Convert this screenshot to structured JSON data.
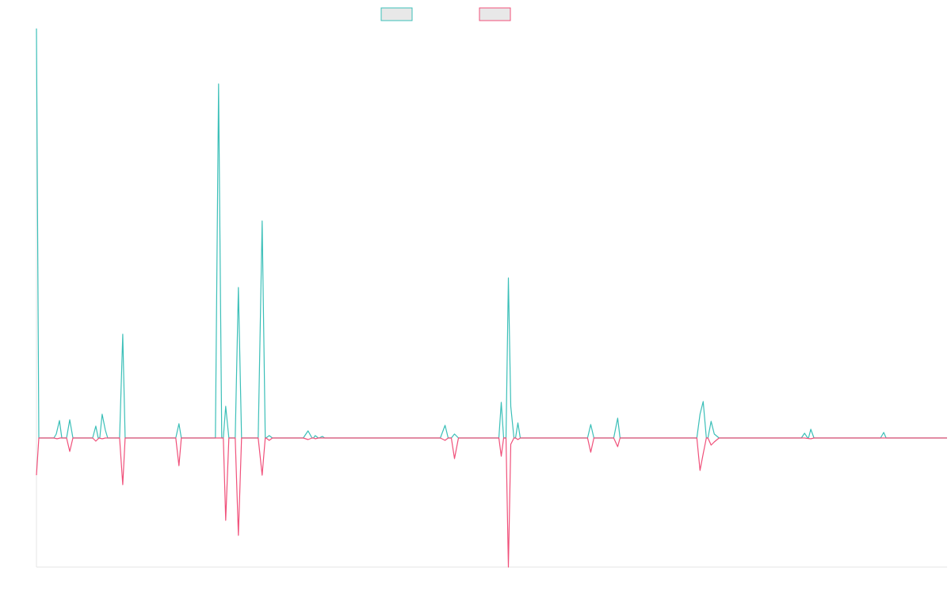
{
  "chart_data": {
    "type": "line",
    "title": "",
    "xlabel": "",
    "ylabel": "",
    "grid": false,
    "legend": "top-center",
    "xlim": [
      0,
      1150
    ],
    "ylim": [
      -163,
      517
    ],
    "series": [
      {
        "color": "#3bbfb8",
        "fill": "#e8e8e8",
        "points": [
          [
            0,
            517
          ],
          [
            3,
            0
          ],
          [
            22,
            0
          ],
          [
            25,
            5
          ],
          [
            29,
            22
          ],
          [
            32,
            0
          ],
          [
            38,
            0
          ],
          [
            42,
            23
          ],
          [
            46,
            0
          ],
          [
            71,
            0
          ],
          [
            75,
            15
          ],
          [
            78,
            0
          ],
          [
            80,
            0
          ],
          [
            83,
            30
          ],
          [
            87,
            10
          ],
          [
            90,
            0
          ],
          [
            105,
            0
          ],
          [
            109,
            131
          ],
          [
            112,
            0
          ],
          [
            176,
            0
          ],
          [
            180,
            18
          ],
          [
            183,
            0
          ],
          [
            226,
            0
          ],
          [
            230,
            447
          ],
          [
            234,
            0
          ],
          [
            236,
            0
          ],
          [
            239,
            40
          ],
          [
            243,
            0
          ],
          [
            251,
            0
          ],
          [
            255,
            190
          ],
          [
            259,
            0
          ],
          [
            280,
            0
          ],
          [
            285,
            274
          ],
          [
            289,
            0
          ],
          [
            290,
            0
          ],
          [
            294,
            3
          ],
          [
            298,
            0
          ],
          [
            337,
            0
          ],
          [
            343,
            9
          ],
          [
            348,
            0
          ],
          [
            350,
            0
          ],
          [
            352,
            3
          ],
          [
            356,
            0
          ],
          [
            357,
            0
          ],
          [
            361,
            2
          ],
          [
            364,
            0
          ],
          [
            510,
            0
          ],
          [
            516,
            16
          ],
          [
            520,
            0
          ],
          [
            524,
            0
          ],
          [
            528,
            5
          ],
          [
            533,
            0
          ],
          [
            584,
            0
          ],
          [
            587,
            45
          ],
          [
            590,
            0
          ],
          [
            593,
            0
          ],
          [
            596,
            202
          ],
          [
            599,
            40
          ],
          [
            603,
            0
          ],
          [
            605,
            0
          ],
          [
            608,
            19
          ],
          [
            611,
            0
          ],
          [
            696,
            0
          ],
          [
            700,
            17
          ],
          [
            704,
            0
          ],
          [
            729,
            0
          ],
          [
            734,
            25
          ],
          [
            737,
            0
          ],
          [
            834,
            0
          ],
          [
            838,
            30
          ],
          [
            842,
            46
          ],
          [
            846,
            0
          ],
          [
            848,
            0
          ],
          [
            852,
            21
          ],
          [
            856,
            5
          ],
          [
            862,
            0
          ],
          [
            966,
            0
          ],
          [
            970,
            6
          ],
          [
            974,
            0
          ],
          [
            975,
            0
          ],
          [
            978,
            11
          ],
          [
            982,
            0
          ],
          [
            1066,
            0
          ],
          [
            1070,
            7
          ],
          [
            1073,
            0
          ],
          [
            1150,
            0
          ]
        ]
      },
      {
        "color": "#f0507a",
        "fill": "#e8e8e8",
        "points": [
          [
            0,
            -47
          ],
          [
            3,
            0
          ],
          [
            22,
            0
          ],
          [
            26,
            -1
          ],
          [
            30,
            0
          ],
          [
            38,
            0
          ],
          [
            42,
            -17
          ],
          [
            46,
            0
          ],
          [
            71,
            0
          ],
          [
            75,
            -4
          ],
          [
            79,
            0
          ],
          [
            83,
            -1
          ],
          [
            87,
            0
          ],
          [
            90,
            0
          ],
          [
            105,
            0
          ],
          [
            109,
            -59
          ],
          [
            112,
            0
          ],
          [
            176,
            0
          ],
          [
            180,
            -35
          ],
          [
            183,
            0
          ],
          [
            226,
            0
          ],
          [
            232,
            0
          ],
          [
            236,
            0
          ],
          [
            239,
            -104
          ],
          [
            243,
            0
          ],
          [
            251,
            0
          ],
          [
            255,
            -123
          ],
          [
            259,
            0
          ],
          [
            280,
            0
          ],
          [
            285,
            -47
          ],
          [
            289,
            0
          ],
          [
            290,
            0
          ],
          [
            294,
            -3
          ],
          [
            298,
            0
          ],
          [
            337,
            0
          ],
          [
            343,
            -2
          ],
          [
            348,
            0
          ],
          [
            350,
            0
          ],
          [
            352,
            -1
          ],
          [
            356,
            0
          ],
          [
            510,
            0
          ],
          [
            516,
            -3
          ],
          [
            520,
            0
          ],
          [
            524,
            0
          ],
          [
            528,
            -26
          ],
          [
            533,
            0
          ],
          [
            584,
            0
          ],
          [
            587,
            -23
          ],
          [
            590,
            0
          ],
          [
            593,
            0
          ],
          [
            596,
            -163
          ],
          [
            599,
            -8
          ],
          [
            603,
            0
          ],
          [
            605,
            0
          ],
          [
            608,
            -2
          ],
          [
            611,
            0
          ],
          [
            696,
            0
          ],
          [
            700,
            -18
          ],
          [
            704,
            0
          ],
          [
            729,
            0
          ],
          [
            734,
            -11
          ],
          [
            737,
            0
          ],
          [
            834,
            0
          ],
          [
            838,
            -41
          ],
          [
            842,
            -20
          ],
          [
            846,
            0
          ],
          [
            848,
            0
          ],
          [
            852,
            -9
          ],
          [
            856,
            -5
          ],
          [
            862,
            0
          ],
          [
            966,
            0
          ],
          [
            970,
            0
          ],
          [
            978,
            -1
          ],
          [
            982,
            0
          ],
          [
            1150,
            0
          ]
        ]
      }
    ]
  }
}
